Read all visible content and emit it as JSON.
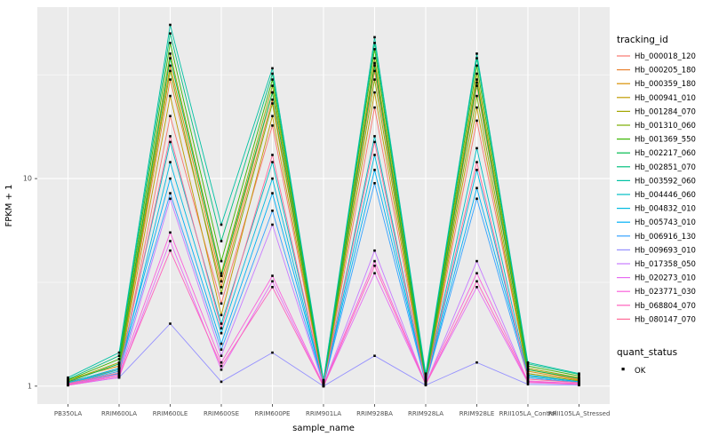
{
  "chart_data": {
    "type": "line",
    "title": "",
    "xlabel": "sample_name",
    "ylabel": "FPKM + 1",
    "log_y": true,
    "ylim": [
      0.82,
      67
    ],
    "y_ticks": [
      {
        "value": 1,
        "label": "1"
      },
      {
        "value": 10,
        "label": "10"
      }
    ],
    "y_minor_ticks": [
      3.1623,
      31.623
    ],
    "panel_bg": "#EBEBEB",
    "grid_color": "#FFFFFF",
    "tick_label_color": "#4D4D4D",
    "point_color": "#000000",
    "categories": [
      "PB350LA",
      "RRIM600LA",
      "RRIM600LE",
      "RRIM600SE",
      "RRIM600PE",
      "RRIM901LA",
      "RRIM928BA",
      "RRIM928LA",
      "RRIM928LE",
      "RRII105LA_Control",
      "RRII105LA_Stressed"
    ],
    "legend_title": "tracking_id",
    "legend2": {
      "title": "quant_status",
      "items": [
        {
          "label": "OK"
        }
      ]
    },
    "series": [
      {
        "name": "Hb_000018_120",
        "color": "#F8766D",
        "values": [
          1.02,
          1.12,
          20,
          2.5,
          18,
          1.01,
          22,
          1.03,
          19,
          1.15,
          1.06
        ]
      },
      {
        "name": "Hb_000205_180",
        "color": "#EA8331",
        "values": [
          1.05,
          1.2,
          30,
          3.0,
          24,
          1.02,
          33,
          1.05,
          28,
          1.2,
          1.08
        ]
      },
      {
        "name": "Hb_000359_180",
        "color": "#D89000",
        "values": [
          1.08,
          1.25,
          35,
          3.2,
          26,
          1.03,
          36,
          1.06,
          30,
          1.18,
          1.07
        ]
      },
      {
        "name": "Hb_000941_010",
        "color": "#C09B00",
        "values": [
          1.03,
          1.18,
          25,
          2.2,
          20,
          1.02,
          26,
          1.04,
          22,
          1.12,
          1.05
        ]
      },
      {
        "name": "Hb_001284_070",
        "color": "#A3A500",
        "values": [
          1.06,
          1.3,
          40,
          3.5,
          28,
          1.04,
          38,
          1.08,
          32,
          1.22,
          1.1
        ]
      },
      {
        "name": "Hb_001310_060",
        "color": "#7CAE00",
        "values": [
          1.04,
          1.22,
          33,
          2.8,
          23,
          1.02,
          30,
          1.05,
          25,
          1.15,
          1.06
        ]
      },
      {
        "name": "Hb_001369_550",
        "color": "#39B600",
        "values": [
          1.07,
          1.35,
          45,
          4.0,
          30,
          1.05,
          42,
          1.1,
          35,
          1.25,
          1.12
        ]
      },
      {
        "name": "Hb_002217_060",
        "color": "#00BB4E",
        "values": [
          1.05,
          1.28,
          38,
          3.4,
          26,
          1.03,
          35,
          1.07,
          29,
          1.2,
          1.09
        ]
      },
      {
        "name": "Hb_002851_070",
        "color": "#00BF7D",
        "values": [
          1.08,
          1.4,
          50,
          5.0,
          32,
          1.06,
          45,
          1.12,
          38,
          1.28,
          1.14
        ]
      },
      {
        "name": "Hb_003592_060",
        "color": "#00C1A3",
        "values": [
          1.1,
          1.45,
          55,
          6.0,
          34,
          1.07,
          48,
          1.15,
          40,
          1.3,
          1.15
        ]
      },
      {
        "name": "Hb_004446_060",
        "color": "#00BFC4",
        "values": [
          1.03,
          1.2,
          15,
          2.0,
          12,
          1.02,
          16,
          1.04,
          14,
          1.12,
          1.05
        ]
      },
      {
        "name": "Hb_004832_010",
        "color": "#00BAE0",
        "values": [
          1.02,
          1.15,
          12,
          1.8,
          10,
          1.01,
          13,
          1.03,
          11,
          1.1,
          1.04
        ]
      },
      {
        "name": "Hb_005743_010",
        "color": "#00B0F6",
        "values": [
          1.04,
          1.22,
          10,
          1.6,
          8.5,
          1.02,
          11,
          1.04,
          9,
          1.13,
          1.05
        ]
      },
      {
        "name": "Hb_006916_130",
        "color": "#35A2FF",
        "values": [
          1.03,
          1.18,
          8.5,
          1.5,
          7,
          1.01,
          9.5,
          1.03,
          8,
          1.1,
          1.04
        ]
      },
      {
        "name": "Hb_009693_010",
        "color": "#9590FF",
        "values": [
          1.01,
          1.1,
          2.0,
          1.05,
          1.45,
          1.0,
          1.4,
          1.01,
          1.3,
          1.02,
          1.01
        ]
      },
      {
        "name": "Hb_017358_050",
        "color": "#C77CFF",
        "values": [
          1.02,
          1.12,
          8.0,
          1.4,
          6.0,
          1.01,
          4.5,
          1.02,
          4.0,
          1.05,
          1.03
        ]
      },
      {
        "name": "Hb_020273_010",
        "color": "#E76BF3",
        "values": [
          1.01,
          1.1,
          5.0,
          1.2,
          3.2,
          1.0,
          3.5,
          1.02,
          3.0,
          1.04,
          1.02
        ]
      },
      {
        "name": "Hb_023771_030",
        "color": "#FA62DB",
        "values": [
          1.02,
          1.14,
          5.5,
          1.3,
          3.4,
          1.01,
          4.0,
          1.03,
          3.5,
          1.06,
          1.03
        ]
      },
      {
        "name": "Hb_068804_070",
        "color": "#FF62BC",
        "values": [
          1.01,
          1.12,
          4.5,
          1.25,
          3.0,
          1.0,
          3.8,
          1.02,
          3.2,
          1.05,
          1.02
        ]
      },
      {
        "name": "Hb_080147_070",
        "color": "#FF6A98",
        "values": [
          1.03,
          1.16,
          16,
          1.9,
          13,
          1.02,
          15,
          1.04,
          12,
          1.08,
          1.04
        ]
      }
    ]
  }
}
